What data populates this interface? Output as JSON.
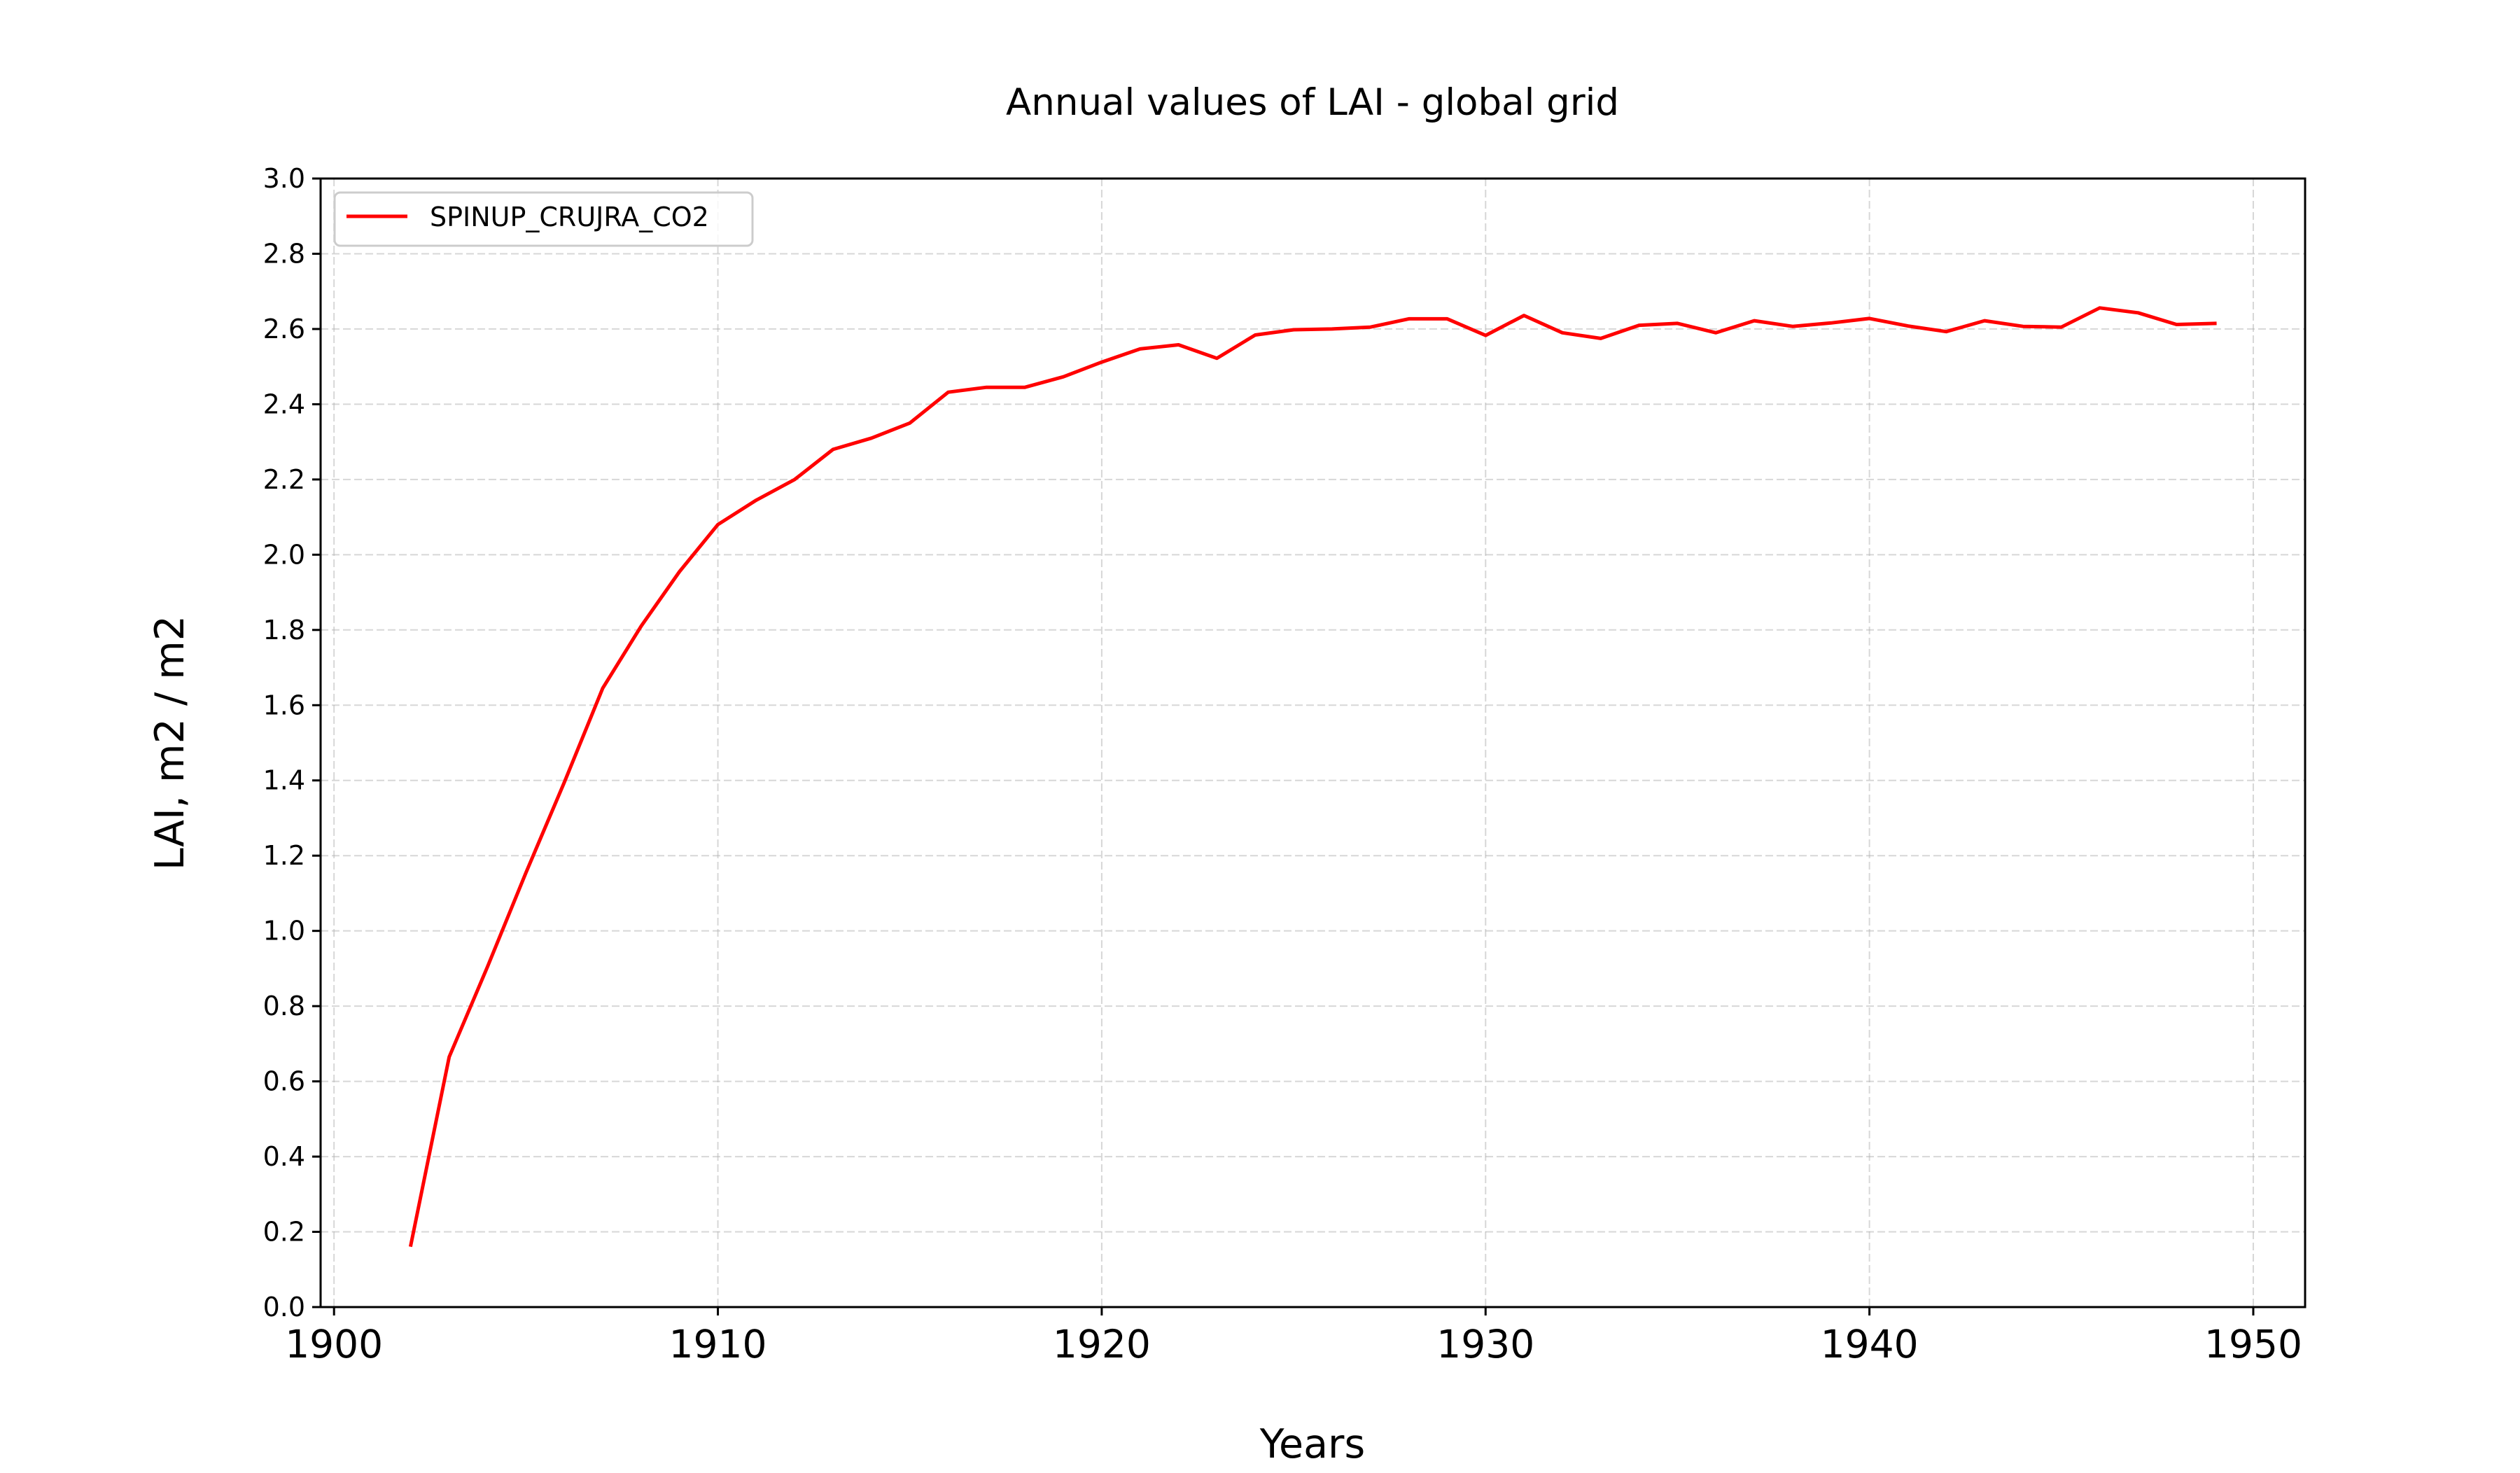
{
  "chart_data": {
    "type": "line",
    "title": "Annual values of LAI - global grid",
    "xlabel": "Years",
    "ylabel": "LAI, m2 / m2",
    "xlim": [
      1899.65,
      1951.35
    ],
    "ylim": [
      0,
      3.0
    ],
    "xticks": [
      1900,
      1910,
      1920,
      1930,
      1940,
      1950
    ],
    "yticks": [
      0.0,
      0.2,
      0.4,
      0.6,
      0.8,
      1.0,
      1.2,
      1.4,
      1.6,
      1.8,
      2.0,
      2.2,
      2.4,
      2.6,
      2.8,
      3.0
    ],
    "grid": true,
    "legend_position": "top-left",
    "series": [
      {
        "name": "SPINUP_CRUJRA_CO2",
        "color": "#ff0000",
        "x": [
          1902,
          1903,
          1904,
          1905,
          1906,
          1907,
          1908,
          1909,
          1910,
          1911,
          1912,
          1913,
          1914,
          1915,
          1916,
          1917,
          1918,
          1919,
          1920,
          1921,
          1922,
          1923,
          1924,
          1925,
          1926,
          1927,
          1928,
          1929,
          1930,
          1931,
          1932,
          1933,
          1934,
          1935,
          1936,
          1937,
          1938,
          1939,
          1940,
          1941,
          1942,
          1943,
          1944,
          1945,
          1946,
          1947,
          1948,
          1949
        ],
        "y": [
          0.165,
          0.665,
          0.905,
          1.155,
          1.395,
          1.645,
          1.81,
          1.955,
          2.08,
          2.145,
          2.2,
          2.28,
          2.31,
          2.35,
          2.432,
          2.445,
          2.445,
          2.473,
          2.512,
          2.547,
          2.558,
          2.522,
          2.584,
          2.598,
          2.6,
          2.605,
          2.627,
          2.627,
          2.583,
          2.636,
          2.59,
          2.575,
          2.61,
          2.615,
          2.59,
          2.622,
          2.607,
          2.616,
          2.628,
          2.608,
          2.593,
          2.622,
          2.607,
          2.605,
          2.656,
          2.643,
          2.612,
          2.615
        ]
      }
    ]
  }
}
